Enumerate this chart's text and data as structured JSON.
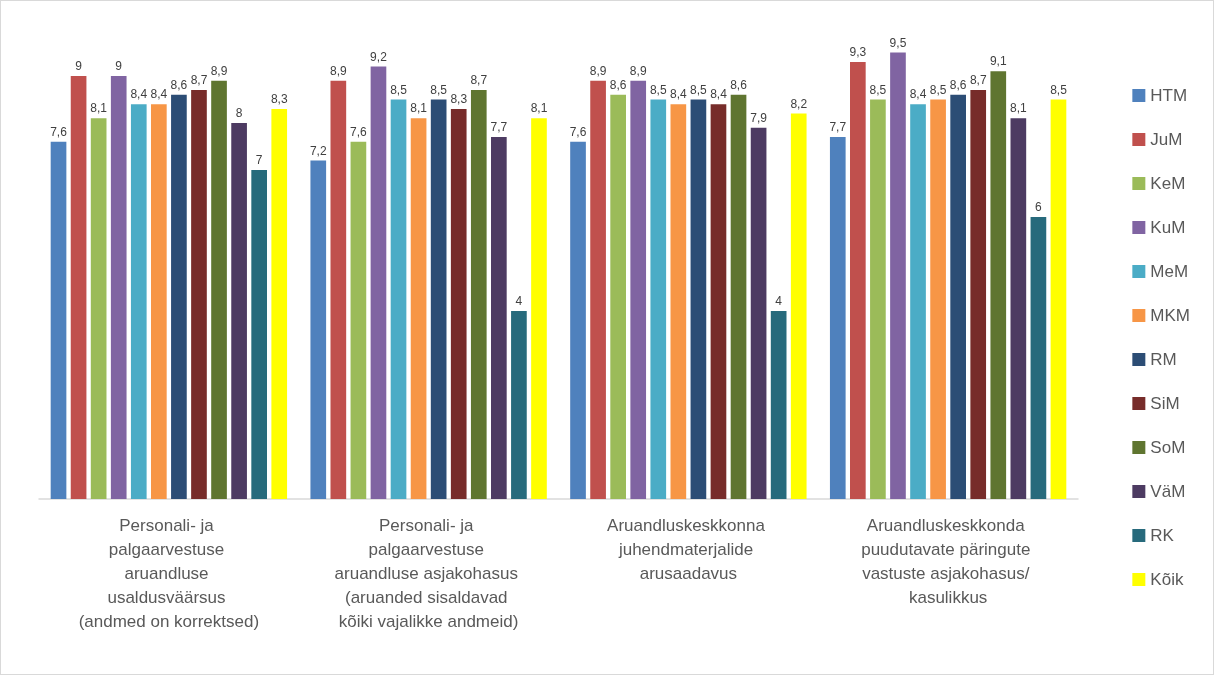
{
  "chart_data": {
    "type": "bar",
    "categories": [
      "Personali- ja palgaarvestuse aruandluse usaldusväärsus (andmed on korrektsed)",
      "Personali- ja palgaarvestuse aruandluse asjakohasus (aruanded sisaldavad kõiki vajalikke andmeid)",
      "Aruandluskeskkonna juhendmaterjalide arusaadavus",
      "Aruandluskeskkonda puudutavate päringute vastuste asjakohasus/ kasulikkus"
    ],
    "series": [
      {
        "name": "HTM",
        "color": "#4f81bd",
        "values": [
          7.6,
          7.2,
          7.6,
          7.7
        ],
        "value_labels": [
          "7,6",
          "7,2",
          "7,6",
          "7,7"
        ]
      },
      {
        "name": "JuM",
        "color": "#c0504d",
        "values": [
          9,
          8.9,
          8.9,
          9.3
        ],
        "value_labels": [
          "9",
          "8,9",
          "8,9",
          "9,3"
        ]
      },
      {
        "name": "KeM",
        "color": "#9bbb59",
        "values": [
          8.1,
          7.6,
          8.6,
          8.5
        ],
        "value_labels": [
          "8,1",
          "7,6",
          "8,6",
          "8,5"
        ]
      },
      {
        "name": "KuM",
        "color": "#8064a2",
        "values": [
          9,
          9.2,
          8.9,
          9.5
        ],
        "value_labels": [
          "9",
          "9,2",
          "8,9",
          "9,5"
        ]
      },
      {
        "name": "MeM",
        "color": "#4bacc6",
        "values": [
          8.4,
          8.5,
          8.5,
          8.4
        ],
        "value_labels": [
          "8,4",
          "8,5",
          "8,5",
          "8,4"
        ]
      },
      {
        "name": "MKM",
        "color": "#f79646",
        "values": [
          8.4,
          8.1,
          8.4,
          8.5
        ],
        "value_labels": [
          "8,4",
          "8,1",
          "8,4",
          "8,5"
        ]
      },
      {
        "name": "RM",
        "color": "#2c4d75",
        "values": [
          8.6,
          8.5,
          8.5,
          8.6
        ],
        "value_labels": [
          "8,6",
          "8,5",
          "8,5",
          "8,6"
        ]
      },
      {
        "name": "SiM",
        "color": "#772c2a",
        "values": [
          8.7,
          8.3,
          8.4,
          8.7
        ],
        "value_labels": [
          "8,7",
          "8,3",
          "8,4",
          "8,7"
        ]
      },
      {
        "name": "SoM",
        "color": "#5f7530",
        "values": [
          8.9,
          8.7,
          8.6,
          9.1
        ],
        "value_labels": [
          "8,9",
          "8,7",
          "8,6",
          "9,1"
        ]
      },
      {
        "name": "VäM",
        "color": "#4d3b62",
        "values": [
          8,
          7.7,
          7.9,
          8.1
        ],
        "value_labels": [
          "8",
          "7,7",
          "7,9",
          "8,1"
        ]
      },
      {
        "name": "RK",
        "color": "#276a7c",
        "values": [
          7,
          4,
          4,
          6
        ],
        "value_labels": [
          "7",
          "4",
          "4",
          "6"
        ]
      },
      {
        "name": "Kõik",
        "color": "#ffff00",
        "values": [
          8.3,
          8.1,
          8.2,
          8.5
        ],
        "value_labels": [
          "8,3",
          "8,1",
          "8,2",
          "8,5"
        ]
      }
    ],
    "legend": "right",
    "tick_labels": "x"
  }
}
